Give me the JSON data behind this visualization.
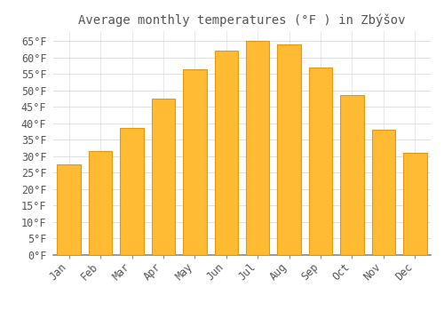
{
  "title": "Average monthly temperatures (°F ) in Zbýšov",
  "months": [
    "Jan",
    "Feb",
    "Mar",
    "Apr",
    "May",
    "Jun",
    "Jul",
    "Aug",
    "Sep",
    "Oct",
    "Nov",
    "Dec"
  ],
  "values": [
    27.5,
    31.5,
    38.5,
    47.5,
    56.5,
    62.0,
    65.0,
    64.0,
    57.0,
    48.5,
    38.0,
    31.0
  ],
  "bar_color_inner": "#FFBB33",
  "bar_color_edge": "#E8960A",
  "background_color": "#FFFFFF",
  "grid_color": "#E0E0E0",
  "text_color": "#555555",
  "ylim": [
    0,
    68
  ],
  "yticks": [
    0,
    5,
    10,
    15,
    20,
    25,
    30,
    35,
    40,
    45,
    50,
    55,
    60,
    65
  ],
  "title_fontsize": 10,
  "tick_fontsize": 8.5
}
